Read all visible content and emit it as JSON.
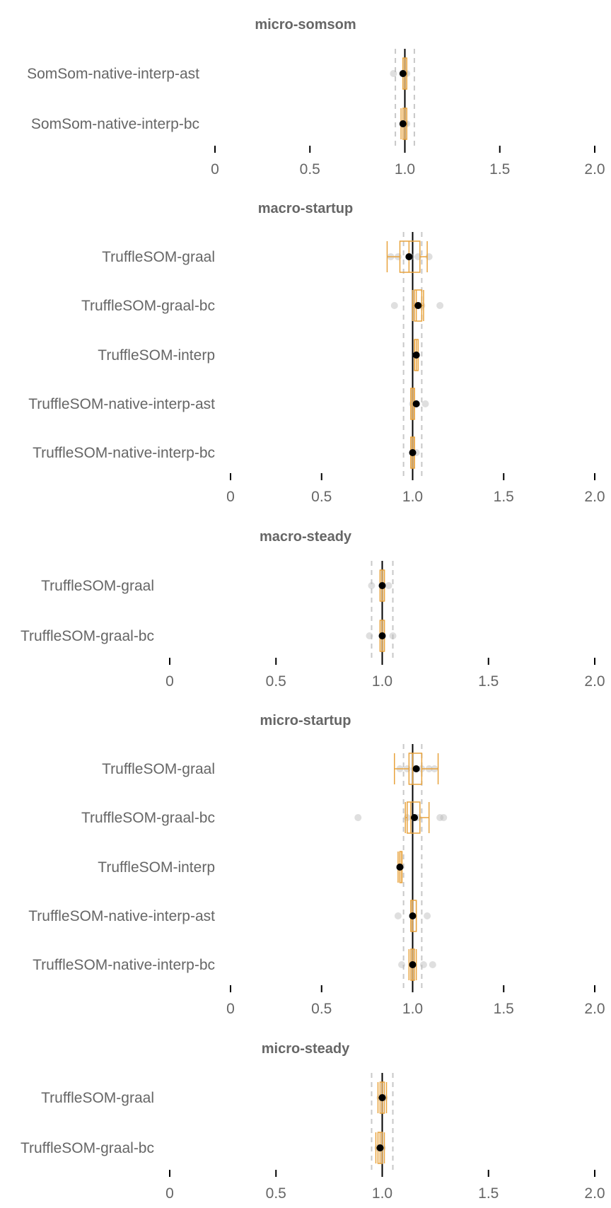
{
  "colors": {
    "box": "#e8a33d",
    "median": "#000000",
    "dots": "#b8b8b8",
    "ref": "#c8c8c8",
    "text": "#666666"
  },
  "chart_data": [
    {
      "type": "boxplot",
      "title": "micro-somsom",
      "xlim": [
        0,
        2.0
      ],
      "xticks": [
        0,
        0.5,
        1.0,
        1.5,
        2.0
      ],
      "xtick_labels": [
        "0",
        "0.5",
        "1.0",
        "1.5",
        "2.0"
      ],
      "reference_lines": [
        0.95,
        1.0,
        1.05
      ],
      "rows": [
        {
          "label": "SomSom-native-interp-ast",
          "mean": 0.99,
          "q1": 0.99,
          "median": 1.0,
          "q3": 1.01,
          "whisker_low": 0.99,
          "whisker_high": 1.01,
          "points": [
            0.94,
            0.99,
            1.0,
            1.01
          ]
        },
        {
          "label": "SomSom-native-interp-bc",
          "mean": 0.99,
          "q1": 0.99,
          "median": 1.0,
          "q3": 1.01,
          "whisker_low": 0.98,
          "whisker_high": 1.01,
          "points": [
            0.99,
            1.0,
            1.0,
            1.01
          ]
        }
      ]
    },
    {
      "type": "boxplot",
      "title": "macro-startup",
      "xlim": [
        0,
        2.0
      ],
      "xticks": [
        0,
        0.5,
        1.0,
        1.5,
        2.0
      ],
      "xtick_labels": [
        "0",
        "0.5",
        "1.0",
        "1.5",
        "2.0"
      ],
      "reference_lines": [
        0.95,
        1.0,
        1.05
      ],
      "rows": [
        {
          "label": "TruffleSOM-graal",
          "mean": 0.98,
          "q1": 0.93,
          "median": 0.98,
          "q3": 1.04,
          "whisker_low": 0.86,
          "whisker_high": 1.08,
          "points": [
            0.88,
            0.92,
            0.99,
            1.03,
            1.09
          ]
        },
        {
          "label": "TruffleSOM-graal-bc",
          "mean": 1.03,
          "q1": 1.01,
          "median": 1.02,
          "q3": 1.05,
          "whisker_low": 1.0,
          "whisker_high": 1.06,
          "points": [
            0.9,
            1.02,
            1.05,
            1.15
          ]
        },
        {
          "label": "TruffleSOM-interp",
          "mean": 1.02,
          "q1": 1.01,
          "median": 1.02,
          "q3": 1.03,
          "whisker_low": 1.01,
          "whisker_high": 1.03,
          "points": [
            1.02
          ]
        },
        {
          "label": "TruffleSOM-native-interp-ast",
          "mean": 1.02,
          "q1": 0.99,
          "median": 1.0,
          "q3": 1.01,
          "whisker_low": 0.99,
          "whisker_high": 1.01,
          "points": [
            1.0,
            1.02,
            1.07
          ]
        },
        {
          "label": "TruffleSOM-native-interp-bc",
          "mean": 1.0,
          "q1": 0.99,
          "median": 1.0,
          "q3": 1.01,
          "whisker_low": 0.99,
          "whisker_high": 1.01,
          "points": [
            1.0,
            1.02
          ]
        }
      ]
    },
    {
      "type": "boxplot",
      "title": "macro-steady",
      "xlim": [
        0,
        2.0
      ],
      "xticks": [
        0,
        0.5,
        1.0,
        1.5,
        2.0
      ],
      "xtick_labels": [
        "0",
        "0.5",
        "1.0",
        "1.5",
        "2.0"
      ],
      "reference_lines": [
        0.95,
        1.0,
        1.05
      ],
      "rows": [
        {
          "label": "TruffleSOM-graal",
          "mean": 1.0,
          "q1": 0.99,
          "median": 1.0,
          "q3": 1.01,
          "whisker_low": 0.99,
          "whisker_high": 1.01,
          "points": [
            0.95,
            1.0,
            1.03
          ]
        },
        {
          "label": "TruffleSOM-graal-bc",
          "mean": 1.0,
          "q1": 0.99,
          "median": 1.0,
          "q3": 1.01,
          "whisker_low": 0.99,
          "whisker_high": 1.01,
          "points": [
            0.94,
            1.0,
            1.05
          ]
        }
      ]
    },
    {
      "type": "boxplot",
      "title": "micro-startup",
      "xlim": [
        0,
        2.0
      ],
      "xticks": [
        0,
        0.5,
        1.0,
        1.5,
        2.0
      ],
      "xtick_labels": [
        "0",
        "0.5",
        "1.0",
        "1.5",
        "2.0"
      ],
      "reference_lines": [
        0.95,
        1.0,
        1.05
      ],
      "rows": [
        {
          "label": "TruffleSOM-graal",
          "mean": 1.02,
          "q1": 0.98,
          "median": 1.0,
          "q3": 1.05,
          "whisker_low": 0.9,
          "whisker_high": 1.14,
          "points": [
            0.93,
            0.97,
            1.01,
            1.05,
            1.09,
            1.12
          ]
        },
        {
          "label": "TruffleSOM-graal-bc",
          "mean": 1.01,
          "q1": 0.97,
          "median": 0.99,
          "q3": 1.04,
          "whisker_low": 0.96,
          "whisker_high": 1.09,
          "points": [
            0.7,
            0.97,
            1.03,
            1.15,
            1.17
          ]
        },
        {
          "label": "TruffleSOM-interp",
          "mean": 0.93,
          "q1": 0.93,
          "median": 0.93,
          "q3": 0.93,
          "whisker_low": 0.92,
          "whisker_high": 0.94,
          "points": [
            0.93
          ]
        },
        {
          "label": "TruffleSOM-native-interp-ast",
          "mean": 1.0,
          "q1": 0.99,
          "median": 1.0,
          "q3": 1.02,
          "whisker_low": 0.99,
          "whisker_high": 1.02,
          "points": [
            0.92,
            1.0,
            1.08
          ]
        },
        {
          "label": "TruffleSOM-native-interp-bc",
          "mean": 1.0,
          "q1": 0.99,
          "median": 1.0,
          "q3": 1.01,
          "whisker_low": 0.98,
          "whisker_high": 1.02,
          "points": [
            0.94,
            1.06,
            1.11
          ]
        }
      ]
    },
    {
      "type": "boxplot",
      "title": "micro-steady",
      "xlim": [
        0,
        2.0
      ],
      "xticks": [
        0,
        0.5,
        1.0,
        1.5,
        2.0
      ],
      "xtick_labels": [
        "0",
        "0.5",
        "1.0",
        "1.5",
        "2.0"
      ],
      "reference_lines": [
        0.95,
        1.0,
        1.05
      ],
      "rows": [
        {
          "label": "TruffleSOM-graal",
          "mean": 1.0,
          "q1": 0.99,
          "median": 1.0,
          "q3": 1.01,
          "whisker_low": 0.98,
          "whisker_high": 1.02,
          "points": [
            0.99,
            1.0,
            1.01
          ]
        },
        {
          "label": "TruffleSOM-graal-bc",
          "mean": 0.99,
          "q1": 0.98,
          "median": 0.99,
          "q3": 1.0,
          "whisker_low": 0.97,
          "whisker_high": 1.01,
          "points": [
            0.98,
            0.99,
            1.0
          ]
        }
      ]
    }
  ]
}
